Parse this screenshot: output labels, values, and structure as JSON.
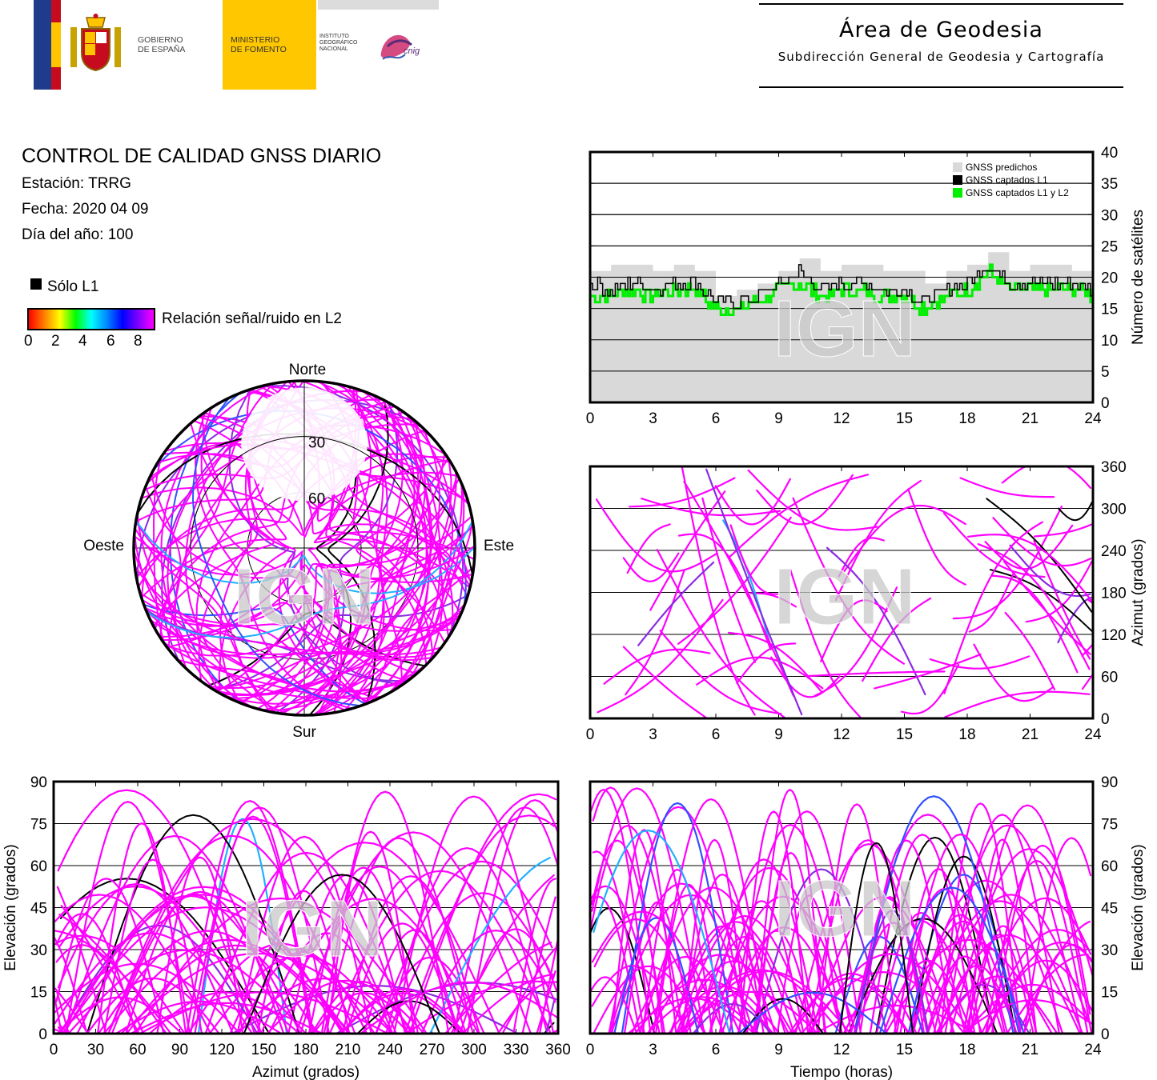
{
  "header": {
    "gov_line1": "GOBIERNO",
    "gov_line2": "DE ESPAÑA",
    "min_line1": "MINISTERIO",
    "min_line2": "DE FOMENTO",
    "ign_line1": "INSTITUTO",
    "ign_line2": "GEOGRÁFICO",
    "ign_line3": "NACIONAL",
    "cnig": "cnig",
    "title": "Área de Geodesia",
    "subtitle": "Subdirección General de Geodesia y Cartografía"
  },
  "report": {
    "title": "CONTROL DE CALIDAD GNSS DIARIO",
    "station": "Estación: TRRG",
    "date": "Fecha: 2020 04 09",
    "doy": "Día del año: 100"
  },
  "legend": {
    "l1_only": "Sólo L1",
    "snr_label": "Relación señal/ruido en L2",
    "snr_ticks": [
      "0",
      "2",
      "4",
      "6",
      "8"
    ]
  },
  "colors": {
    "l1_only": "#000000",
    "snr_max": "#ff00ff",
    "predicted": "#d9d9d9",
    "l1l2": "#00ee00",
    "watermark": "#c8c8c8"
  },
  "watermark": "IGN",
  "chart_data": [
    {
      "id": "satellites",
      "type": "area",
      "ylabel": "Número de satélites",
      "xlim": [
        0,
        24
      ],
      "ylim": [
        0,
        40
      ],
      "xticks": [
        "0",
        "3",
        "6",
        "9",
        "12",
        "15",
        "18",
        "21",
        "24"
      ],
      "yticks": [
        "0",
        "5",
        "10",
        "15",
        "20",
        "25",
        "30",
        "35",
        "40"
      ],
      "grid": true,
      "legend_position": "top-right",
      "series": [
        {
          "name": "GNSS predichos",
          "color": "#d9d9d9",
          "x": [
            0,
            1,
            2,
            3,
            4,
            5,
            6,
            7,
            8,
            9,
            10,
            11,
            12,
            13,
            14,
            15,
            16,
            17,
            18,
            19,
            20,
            21,
            22,
            23,
            24
          ],
          "values": [
            21,
            22,
            22,
            21,
            22,
            21,
            17,
            18,
            19,
            21,
            23,
            21,
            22,
            22,
            21,
            21,
            19,
            21,
            22,
            24,
            21,
            22,
            22,
            21,
            21
          ]
        },
        {
          "name": "GNSS captados L1",
          "color": "#000000",
          "x": [
            0,
            1,
            2,
            3,
            4,
            5,
            6,
            7,
            8,
            9,
            10,
            11,
            12,
            13,
            14,
            15,
            16,
            17,
            18,
            19,
            20,
            21,
            22,
            23,
            24
          ],
          "values": [
            19,
            18,
            19,
            18,
            19,
            19,
            16,
            16,
            17,
            19,
            21,
            18,
            19,
            19,
            18,
            18,
            16,
            18,
            19,
            22,
            19,
            19,
            19,
            19,
            18
          ]
        },
        {
          "name": "GNSS captados L1 y L2",
          "color": "#00ee00",
          "x": [
            0,
            1,
            2,
            3,
            4,
            5,
            6,
            7,
            8,
            9,
            10,
            11,
            12,
            13,
            14,
            15,
            16,
            17,
            18,
            19,
            20,
            21,
            22,
            23,
            24
          ],
          "values": [
            17,
            17,
            18,
            17,
            18,
            18,
            15,
            15,
            16,
            18,
            19,
            17,
            18,
            18,
            17,
            17,
            15,
            17,
            18,
            21,
            18,
            18,
            18,
            18,
            17
          ]
        }
      ]
    },
    {
      "id": "skyplot",
      "type": "scatter",
      "compass": {
        "north": "Norte",
        "south": "Sur",
        "east": "Este",
        "west": "Oeste"
      },
      "ring_labels": [
        "30",
        "60"
      ],
      "rings_elevation": [
        30,
        60
      ]
    },
    {
      "id": "azimuth_time",
      "type": "scatter",
      "ylabel": "Azimut (grados)",
      "xlim": [
        0,
        24
      ],
      "ylim": [
        0,
        360
      ],
      "xticks": [
        "0",
        "3",
        "6",
        "9",
        "12",
        "15",
        "18",
        "21",
        "24"
      ],
      "yticks": [
        "0",
        "60",
        "120",
        "180",
        "240",
        "300",
        "360"
      ],
      "grid": true
    },
    {
      "id": "elev_azimuth",
      "type": "scatter",
      "xlabel": "Azimut (grados)",
      "ylabel": "Elevación (grados)",
      "xlim": [
        0,
        360
      ],
      "ylim": [
        0,
        90
      ],
      "xticks": [
        "0",
        "30",
        "60",
        "90",
        "120",
        "150",
        "180",
        "210",
        "240",
        "270",
        "300",
        "330",
        "360"
      ],
      "yticks": [
        "0",
        "15",
        "30",
        "45",
        "60",
        "75",
        "90"
      ],
      "grid": true
    },
    {
      "id": "elev_time",
      "type": "scatter",
      "xlabel": "Tiempo (horas)",
      "ylabel": "Elevación (grados)",
      "xlim": [
        0,
        24
      ],
      "ylim": [
        0,
        90
      ],
      "xticks": [
        "0",
        "3",
        "6",
        "9",
        "12",
        "15",
        "18",
        "21",
        "24"
      ],
      "yticks": [
        "0",
        "15",
        "30",
        "45",
        "60",
        "75",
        "90"
      ],
      "grid": true
    }
  ]
}
